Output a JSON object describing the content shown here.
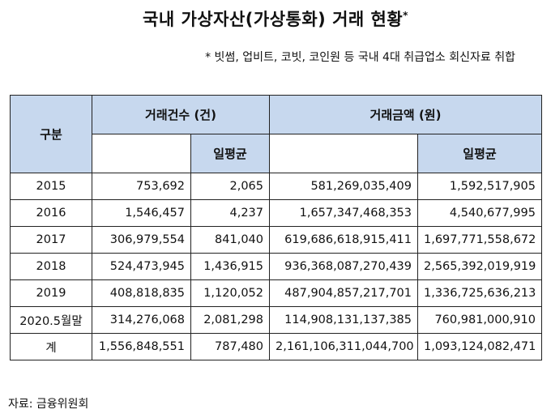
{
  "title": "국내 가상자산(가상통화) 거래 현황",
  "title_mark": "*",
  "note": "* 빗썸, 업비트, 코빗, 코인원 등 국내 4대 취급업소 회신자료 취합",
  "table": {
    "header": {
      "category": "구분",
      "count_group": "거래건수 (건)",
      "amount_group": "거래금액 (원)",
      "daily_avg": "일평균"
    },
    "rows": [
      {
        "label": "2015",
        "count": "753,692",
        "count_avg": "2,065",
        "amount": "581,269,035,409",
        "amount_avg": "1,592,517,905"
      },
      {
        "label": "2016",
        "count": "1,546,457",
        "count_avg": "4,237",
        "amount": "1,657,347,468,353",
        "amount_avg": "4,540,677,995"
      },
      {
        "label": "2017",
        "count": "306,979,554",
        "count_avg": "841,040",
        "amount": "619,686,618,915,411",
        "amount_avg": "1,697,771,558,672"
      },
      {
        "label": "2018",
        "count": "524,473,945",
        "count_avg": "1,436,915",
        "amount": "936,368,087,270,439",
        "amount_avg": "2,565,392,019,919"
      },
      {
        "label": "2019",
        "count": "408,818,835",
        "count_avg": "1,120,052",
        "amount": "487,904,857,217,701",
        "amount_avg": "1,336,725,636,213"
      },
      {
        "label": "2020.5월말",
        "count": "314,276,068",
        "count_avg": "2,081,298",
        "amount": "114,908,131,137,385",
        "amount_avg": "760,981,000,910"
      },
      {
        "label": "계",
        "count": "1,556,848,551",
        "count_avg": "787,480",
        "amount": "2,161,106,311,044,700",
        "amount_avg": "1,093,124,082,471"
      }
    ]
  },
  "source": "자료: 금융위원회"
}
